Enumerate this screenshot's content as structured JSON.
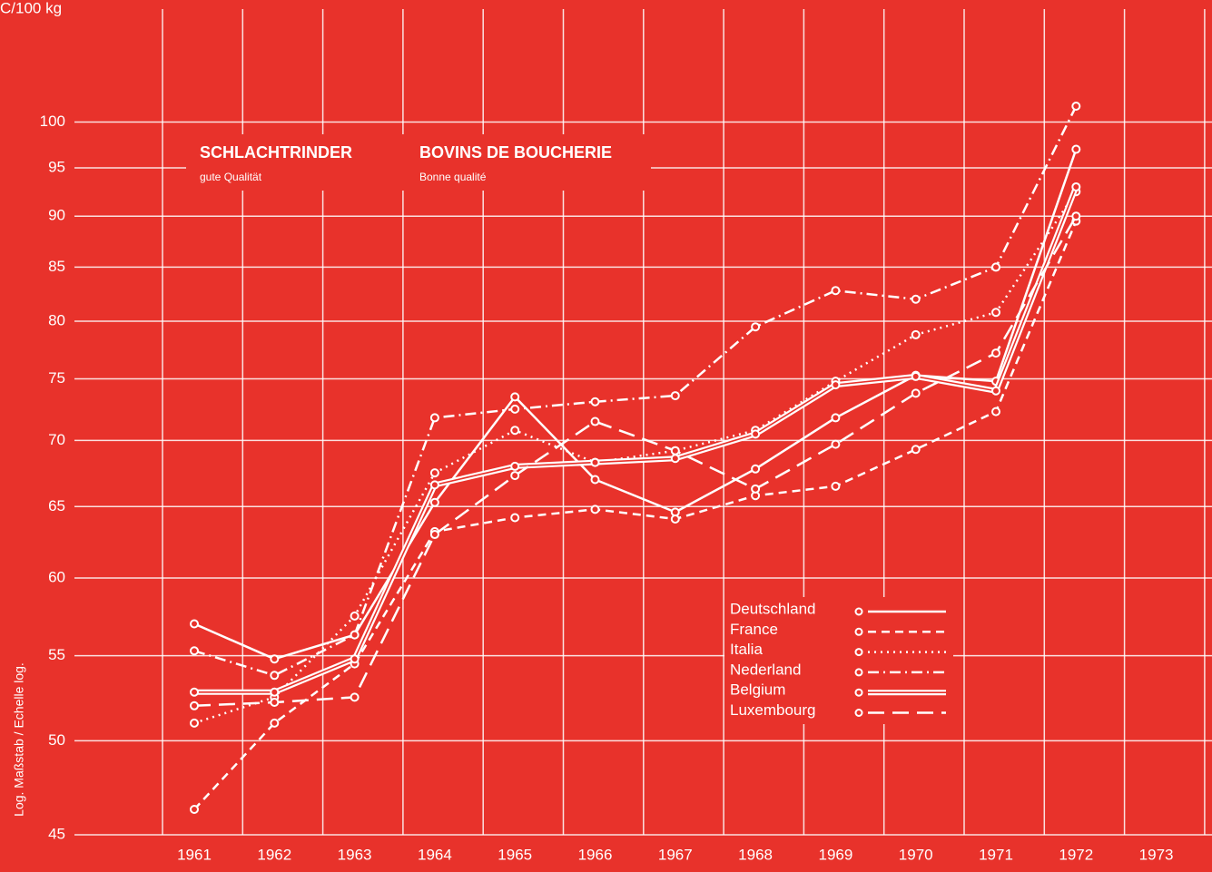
{
  "chart_data": {
    "type": "line",
    "y_unit_label": "C/100 kg",
    "y_axis_label": "Log. Maßstab / Echelle log.",
    "titles": [
      {
        "title": "SCHLACHTRINDER",
        "subtitle": "gute Qualität"
      },
      {
        "title": "BOVINS DE BOUCHERIE",
        "subtitle": "Bonne qualité"
      }
    ],
    "categories": [
      "1961",
      "1962",
      "1963",
      "1964",
      "1965",
      "1966",
      "1967",
      "1968",
      "1969",
      "1970",
      "1971",
      "1972",
      "1973"
    ],
    "log_scale": true,
    "grid": true,
    "background": "#e8322b",
    "ylim": [
      45,
      113.5
    ],
    "yticks": [
      45,
      50,
      55,
      60,
      65,
      70,
      75,
      80,
      85,
      90,
      95,
      100
    ],
    "series": [
      {
        "name": "Deutschland",
        "color": "#ffffff",
        "line_style": "solid",
        "values": [
          57,
          54.8,
          56.3,
          65.3,
          73.5,
          67,
          64.6,
          67.8,
          71.8,
          75.3,
          74.8,
          97,
          null
        ]
      },
      {
        "name": "France",
        "color": "#ffffff",
        "line_style": "dashed",
        "values": [
          46.3,
          51,
          54.5,
          63.2,
          64.2,
          64.8,
          64.1,
          65.8,
          66.5,
          69.3,
          72.3,
          89.5,
          null
        ]
      },
      {
        "name": "Italia",
        "color": "#ffffff",
        "line_style": "dotted",
        "values": [
          51,
          52.5,
          57.5,
          67.5,
          70.8,
          68.3,
          69.2,
          70.8,
          74.8,
          78.8,
          80.8,
          92.5,
          null
        ]
      },
      {
        "name": "Nederland",
        "color": "#ffffff",
        "line_style": "dashdot",
        "values": [
          55.3,
          53.8,
          56.3,
          71.8,
          72.5,
          73.1,
          73.6,
          79.5,
          82.8,
          82,
          85,
          101.8,
          null
        ]
      },
      {
        "name": "Belgium",
        "color": "#ffffff",
        "line_style": "double",
        "values": [
          52.8,
          52.8,
          54.8,
          66.6,
          68,
          68.3,
          68.6,
          70.5,
          74.5,
          75.2,
          74,
          93,
          null
        ]
      },
      {
        "name": "Luxembourg",
        "color": "#ffffff",
        "line_style": "longdash",
        "values": [
          52,
          52.2,
          52.5,
          63,
          67.3,
          71.5,
          69.2,
          66.3,
          69.7,
          73.8,
          77.2,
          90,
          null
        ]
      }
    ]
  }
}
